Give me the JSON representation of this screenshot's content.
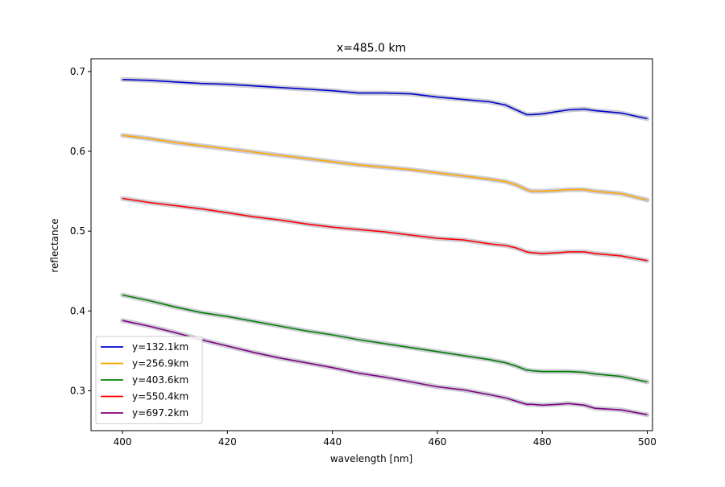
{
  "chart_data": {
    "type": "line",
    "title": "x=485.0 km",
    "xlabel": "wavelength [nm]",
    "ylabel": "reflectance",
    "xlim": [
      394,
      501
    ],
    "ylim": [
      0.25,
      0.716
    ],
    "xticks": [
      400,
      420,
      440,
      460,
      480,
      500
    ],
    "yticks": [
      0.3,
      0.4,
      0.5,
      0.6,
      0.7
    ],
    "grid": false,
    "legend_position": "lower-left",
    "uncertainty_band_color": "#c8c8d2",
    "series": [
      {
        "name": "y=132.1km",
        "color": "#0000cc",
        "x": [
          400,
          405,
          410,
          415,
          420,
          425,
          430,
          435,
          440,
          445,
          450,
          455,
          460,
          465,
          470,
          473,
          475,
          477,
          478,
          480,
          483,
          485,
          488,
          490,
          495,
          500
        ],
        "values": [
          0.69,
          0.689,
          0.687,
          0.685,
          0.684,
          0.682,
          0.68,
          0.678,
          0.676,
          0.673,
          0.673,
          0.672,
          0.668,
          0.665,
          0.662,
          0.658,
          0.652,
          0.646,
          0.646,
          0.647,
          0.65,
          0.652,
          0.653,
          0.651,
          0.648,
          0.641
        ]
      },
      {
        "name": "y=256.9km",
        "color": "#ffa500",
        "x": [
          400,
          405,
          410,
          415,
          420,
          425,
          430,
          435,
          440,
          445,
          450,
          455,
          460,
          465,
          470,
          473,
          475,
          477,
          478,
          480,
          483,
          485,
          488,
          490,
          495,
          500
        ],
        "values": [
          0.62,
          0.616,
          0.611,
          0.607,
          0.603,
          0.599,
          0.595,
          0.591,
          0.587,
          0.583,
          0.58,
          0.577,
          0.573,
          0.569,
          0.565,
          0.562,
          0.558,
          0.552,
          0.55,
          0.55,
          0.551,
          0.552,
          0.552,
          0.55,
          0.547,
          0.539
        ]
      },
      {
        "name": "y=403.6km",
        "color": "#008000",
        "x": [
          400,
          405,
          410,
          415,
          420,
          425,
          430,
          435,
          440,
          445,
          450,
          455,
          460,
          465,
          470,
          473,
          475,
          477,
          478,
          480,
          483,
          485,
          488,
          490,
          495,
          500
        ],
        "values": [
          0.42,
          0.413,
          0.405,
          0.398,
          0.393,
          0.387,
          0.381,
          0.375,
          0.37,
          0.364,
          0.359,
          0.354,
          0.349,
          0.344,
          0.339,
          0.335,
          0.331,
          0.326,
          0.325,
          0.324,
          0.324,
          0.324,
          0.323,
          0.321,
          0.318,
          0.311
        ]
      },
      {
        "name": "y=550.4km",
        "color": "#ff0000",
        "x": [
          400,
          405,
          410,
          415,
          420,
          425,
          430,
          435,
          440,
          445,
          450,
          455,
          460,
          465,
          470,
          473,
          475,
          477,
          478,
          480,
          483,
          485,
          488,
          490,
          495,
          500
        ],
        "values": [
          0.541,
          0.536,
          0.532,
          0.528,
          0.523,
          0.518,
          0.514,
          0.509,
          0.505,
          0.502,
          0.499,
          0.495,
          0.491,
          0.489,
          0.484,
          0.482,
          0.479,
          0.474,
          0.473,
          0.472,
          0.473,
          0.474,
          0.474,
          0.472,
          0.469,
          0.463
        ]
      },
      {
        "name": "y=697.2km",
        "color": "#800080",
        "x": [
          400,
          405,
          410,
          415,
          420,
          425,
          430,
          435,
          440,
          445,
          450,
          455,
          460,
          465,
          470,
          473,
          475,
          477,
          478,
          480,
          483,
          485,
          488,
          490,
          495,
          500
        ],
        "values": [
          0.388,
          0.381,
          0.373,
          0.364,
          0.356,
          0.348,
          0.341,
          0.335,
          0.329,
          0.322,
          0.317,
          0.311,
          0.305,
          0.301,
          0.295,
          0.291,
          0.287,
          0.283,
          0.283,
          0.282,
          0.283,
          0.284,
          0.282,
          0.278,
          0.276,
          0.27
        ]
      }
    ]
  }
}
